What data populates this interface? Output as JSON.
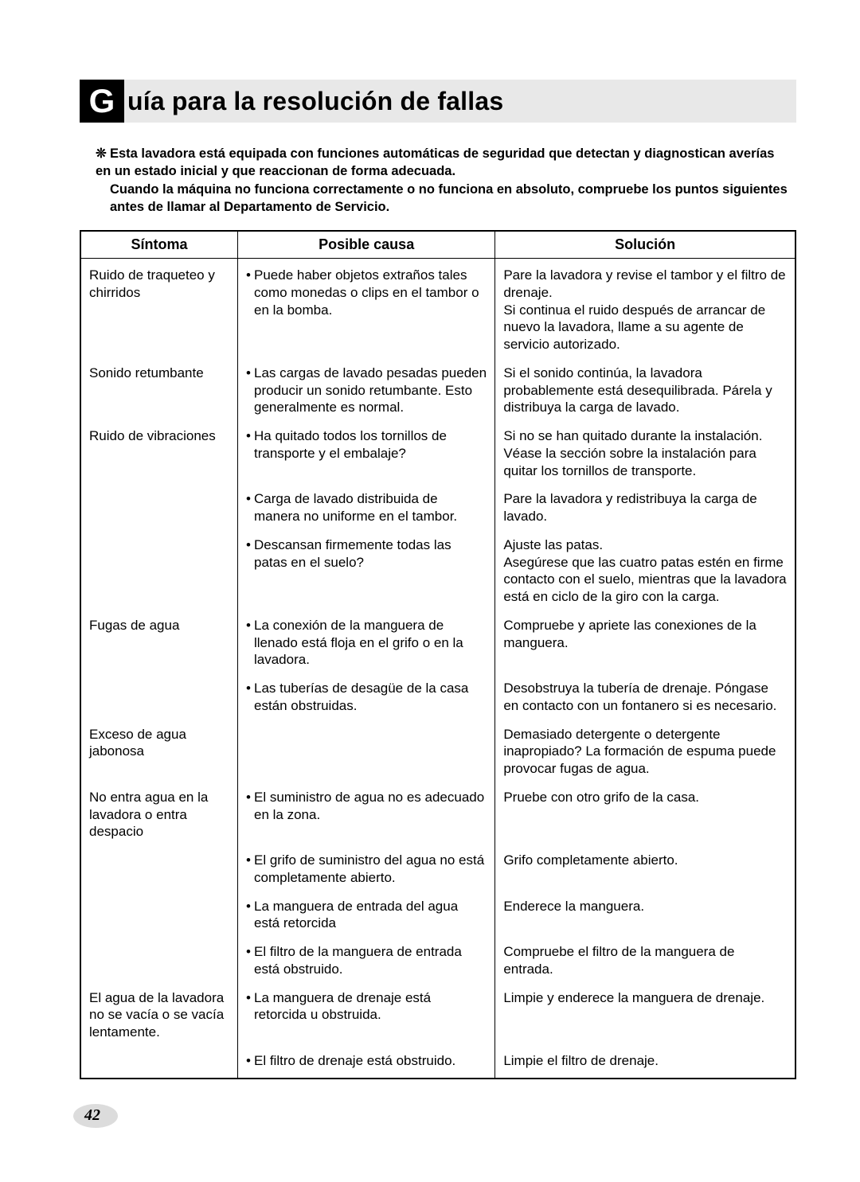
{
  "title": {
    "big_letter": "G",
    "rest": "uía para la resolución de fallas"
  },
  "intro": {
    "star": "❊",
    "p1": "Esta lavadora está equipada con funciones automáticas de seguridad que detectan y diagnostican averías en un estado inicial y que reaccionan de forma adecuada.",
    "p2": "Cuando la máquina no funciona correctamente o no funciona en absoluto, compruebe los puntos siguientes antes de llamar al Departamento de Servicio."
  },
  "headers": {
    "symptom": "Síntoma",
    "cause": "Posible causa",
    "solution": "Solución"
  },
  "rows": [
    {
      "symptom": "Ruido de traqueteo y chirridos",
      "cause": "Puede haber objetos extraños tales como monedas o clips en el tambor o en la bomba.",
      "solution": "Pare la lavadora y revise el tambor y el filtro de drenaje.\nSi continua el ruido después de arrancar de nuevo la lavadora, llame a su agente de servicio autorizado."
    },
    {
      "symptom": "Sonido retumbante",
      "cause": "Las cargas de lavado pesadas pueden producir un sonido retumbante. Esto generalmente es normal.",
      "solution": "Si el sonido continúa, la lavadora probablemente está desequilibrada. Párela y distribuya la carga de lavado."
    },
    {
      "symptom": "Ruido de vibraciones",
      "cause": "Ha quitado todos los tornillos de transporte y el embalaje?",
      "solution": "Si no se han quitado durante la instalación. Véase la sección sobre la instalación para quitar los tornillos de transporte."
    },
    {
      "symptom": "",
      "cause": "Carga de lavado distribuida de manera no uniforme en el tambor.",
      "solution": "Pare la lavadora y redistribuya la carga de lavado."
    },
    {
      "symptom": "",
      "cause": "Descansan firmemente todas las patas en el suelo?",
      "solution": "Ajuste las patas.\nAsegúrese que las cuatro patas estén en firme contacto con el suelo, mientras que la lavadora está en ciclo de la giro con la carga."
    },
    {
      "symptom": "Fugas de agua",
      "cause": "La conexión de la manguera de llenado está floja en el grifo o en la lavadora.",
      "solution": "Compruebe y apriete las conexiones de la manguera."
    },
    {
      "symptom": "",
      "cause": "Las tuberías de desagüe de la casa están obstruidas.",
      "solution": "Desobstruya la tubería de drenaje. Póngase en contacto con un fontanero si es necesario."
    },
    {
      "symptom": "Exceso de agua jabonosa",
      "cause": "",
      "solution": "Demasiado detergente o detergente inapropiado? La formación de espuma puede provocar fugas de agua."
    },
    {
      "symptom": "No entra agua en la lavadora o entra despacio",
      "cause": "El suministro de agua no es adecuado en la zona.",
      "solution": "Pruebe con otro grifo de la casa."
    },
    {
      "symptom": "",
      "cause": "El grifo de suministro del agua no está completamente abierto.",
      "solution": "Grifo completamente abierto."
    },
    {
      "symptom": "",
      "cause": "La manguera de entrada del agua está retorcida",
      "solution": "Enderece la manguera."
    },
    {
      "symptom": "",
      "cause": "El filtro de la manguera de entrada está obstruido.",
      "solution": "Compruebe el filtro de la manguera de entrada."
    },
    {
      "symptom": "El agua de la lavadora no se vacía o se vacía lentamente.",
      "cause": "La manguera de drenaje está retorcida u obstruida.",
      "solution": "Limpie y enderece la manguera de drenaje."
    },
    {
      "symptom": "",
      "cause": "El filtro de drenaje está obstruido.",
      "solution": "Limpie el filtro de drenaje."
    }
  ],
  "page_number": "42",
  "style": {
    "bg": "#ffffff",
    "title_bg": "#e8e8e8",
    "box_bg": "#000000",
    "box_fg": "#ffffff",
    "text": "#000000",
    "pagenum_bg": "#dcdcdc"
  }
}
